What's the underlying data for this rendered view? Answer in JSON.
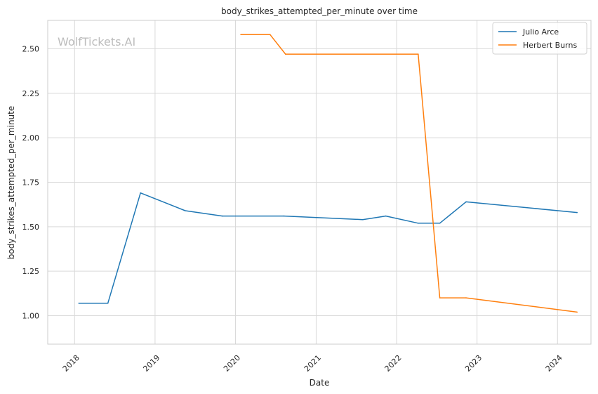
{
  "chart_data": {
    "type": "line",
    "title": "body_strikes_attempted_per_minute over time",
    "xlabel": "Date",
    "ylabel": "body_strikes_attempted_per_minute",
    "watermark": "WolfTickets.AI",
    "x_axis_type": "date",
    "xlim": [
      "2017-09-01",
      "2024-06-01"
    ],
    "ylim": [
      0.84,
      2.66
    ],
    "x_ticks": [
      "2018",
      "2019",
      "2020",
      "2021",
      "2022",
      "2023",
      "2024"
    ],
    "y_ticks": [
      "1.00",
      "1.25",
      "1.50",
      "1.75",
      "2.00",
      "2.25",
      "2.50"
    ],
    "grid": true,
    "legend_position": "top-right",
    "series": [
      {
        "name": "Julio Arce",
        "color": "#1f77b4",
        "points": [
          {
            "x": "2018-01-20",
            "y": 1.07
          },
          {
            "x": "2018-06-01",
            "y": 1.07
          },
          {
            "x": "2018-10-27",
            "y": 1.69
          },
          {
            "x": "2019-05-18",
            "y": 1.59
          },
          {
            "x": "2019-11-02",
            "y": 1.56
          },
          {
            "x": "2020-08-08",
            "y": 1.56
          },
          {
            "x": "2021-07-31",
            "y": 1.54
          },
          {
            "x": "2021-11-13",
            "y": 1.56
          },
          {
            "x": "2022-04-09",
            "y": 1.52
          },
          {
            "x": "2022-07-16",
            "y": 1.52
          },
          {
            "x": "2022-11-12",
            "y": 1.64
          },
          {
            "x": "2024-03-30",
            "y": 1.58
          }
        ]
      },
      {
        "name": "Herbert Burns",
        "color": "#ff7f0e",
        "points": [
          {
            "x": "2020-01-25",
            "y": 2.58
          },
          {
            "x": "2020-06-06",
            "y": 2.58
          },
          {
            "x": "2020-08-15",
            "y": 2.47
          },
          {
            "x": "2022-04-09",
            "y": 2.47
          },
          {
            "x": "2022-07-16",
            "y": 1.1
          },
          {
            "x": "2022-11-12",
            "y": 1.1
          },
          {
            "x": "2024-03-30",
            "y": 1.02
          }
        ]
      }
    ]
  }
}
